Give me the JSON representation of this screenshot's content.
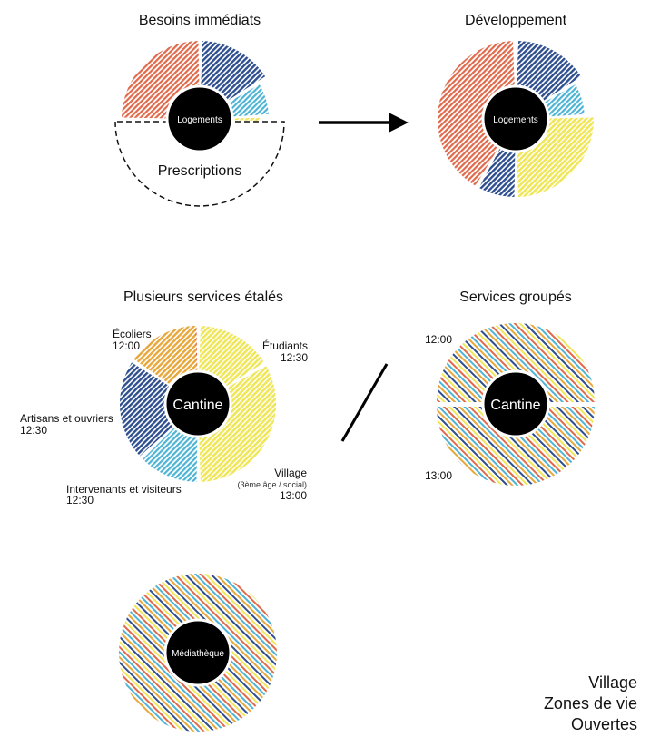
{
  "colors": {
    "red": "#e06a4c",
    "navy": "#2f4f8f",
    "lightblue": "#4fb4d4",
    "yellow": "#efe65a",
    "orange": "#e8a73a",
    "hub": "#000000"
  },
  "top_left": {
    "title": "Besoins immédiats",
    "hub": "Logements",
    "prescriptions": "Prescriptions",
    "segments": [
      {
        "color": "red"
      },
      {
        "color": "navy"
      },
      {
        "color": "lightblue"
      },
      {
        "color": "yellow"
      }
    ]
  },
  "top_right": {
    "title": "Développement",
    "hub": "Logements",
    "segments": [
      {
        "color": "red"
      },
      {
        "color": "navy"
      },
      {
        "color": "lightblue"
      },
      {
        "color": "yellow"
      },
      {
        "color": "navy"
      }
    ]
  },
  "mid_left": {
    "title": "Plusieurs services étalés",
    "hub": "Cantine",
    "groups": {
      "ecoliers": {
        "name": "Écoliers",
        "time": "12:00",
        "color": "orange"
      },
      "etudiants": {
        "name": "Étudiants",
        "time": "12:30",
        "color": "red"
      },
      "artisans": {
        "name": "Artisans et ouvriers",
        "time": "12:30",
        "color": "navy"
      },
      "intervenants": {
        "name": "Intervenants et visiteurs",
        "time": "12:30",
        "color": "lightblue"
      },
      "village": {
        "name": "Village",
        "detail": "(3ème âge / social)",
        "time": "13:00",
        "color": "yellow"
      }
    }
  },
  "mid_right": {
    "title": "Services groupés",
    "hub": "Cantine",
    "time_top": "12:00",
    "time_bottom": "13:00"
  },
  "bottom": {
    "hub": "Médiathèque"
  },
  "footer": {
    "line1": "Village",
    "line2": "Zones de vie",
    "line3": "Ouvertes"
  }
}
